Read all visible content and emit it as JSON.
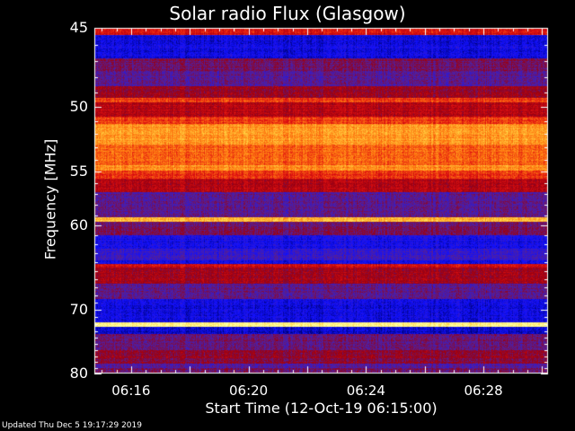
{
  "chart_data": {
    "type": "heatmap",
    "title": "Solar radio Flux (Glasgow)",
    "xlabel": "Start Time (12-Oct-19 06:15:00)",
    "ylabel": "Frequency [MHz]",
    "ylim": [
      45,
      80
    ],
    "y_ticks": [
      "45",
      "50",
      "55",
      "60",
      "70",
      "80"
    ],
    "x_ticks": [
      {
        "label": "06:16",
        "minutes": 16
      },
      {
        "label": "06:20",
        "minutes": 20
      },
      {
        "label": "06:24",
        "minutes": 24
      },
      {
        "label": "06:28",
        "minutes": 28
      }
    ],
    "x_range_minutes": [
      14.75,
      30.2
    ],
    "colormap": [
      "#000070",
      "#1010ff",
      "#5020a0",
      "#9a0010",
      "#e01010",
      "#ff7a10",
      "#ffd040",
      "#ffffa0"
    ],
    "bands": [
      {
        "mhz": [
          45.0,
          45.4
        ],
        "intensity": 0.55
      },
      {
        "mhz": [
          45.4,
          46.8
        ],
        "intensity": 0.12
      },
      {
        "mhz": [
          46.8,
          47.6
        ],
        "intensity": 0.35
      },
      {
        "mhz": [
          47.6,
          48.6
        ],
        "intensity": 0.3
      },
      {
        "mhz": [
          48.6,
          49.4
        ],
        "intensity": 0.42
      },
      {
        "mhz": [
          49.4,
          49.7
        ],
        "intensity": 0.62
      },
      {
        "mhz": [
          49.7,
          50.7
        ],
        "intensity": 0.48
      },
      {
        "mhz": [
          50.7,
          51.2
        ],
        "intensity": 0.62
      },
      {
        "mhz": [
          51.2,
          52.8
        ],
        "intensity": 0.76
      },
      {
        "mhz": [
          52.8,
          54.5
        ],
        "intensity": 0.68
      },
      {
        "mhz": [
          54.5,
          54.9
        ],
        "intensity": 0.75
      },
      {
        "mhz": [
          54.9,
          55.6
        ],
        "intensity": 0.62
      },
      {
        "mhz": [
          55.6,
          56.8
        ],
        "intensity": 0.48
      },
      {
        "mhz": [
          56.8,
          59.2
        ],
        "intensity": 0.3
      },
      {
        "mhz": [
          59.2,
          59.6
        ],
        "intensity": 0.82
      },
      {
        "mhz": [
          59.6,
          61.0
        ],
        "intensity": 0.34
      },
      {
        "mhz": [
          61.0,
          62.5
        ],
        "intensity": 0.14
      },
      {
        "mhz": [
          62.5,
          63.8
        ],
        "intensity": 0.22
      },
      {
        "mhz": [
          63.8,
          64.2
        ],
        "intensity": 0.12
      },
      {
        "mhz": [
          64.2,
          64.6
        ],
        "intensity": 0.55
      },
      {
        "mhz": [
          64.6,
          66.5
        ],
        "intensity": 0.44
      },
      {
        "mhz": [
          66.5,
          68.5
        ],
        "intensity": 0.3
      },
      {
        "mhz": [
          68.5,
          71.8
        ],
        "intensity": 0.12
      },
      {
        "mhz": [
          71.8,
          72.4
        ],
        "intensity": 0.95
      },
      {
        "mhz": [
          72.4,
          73.5
        ],
        "intensity": 0.08
      },
      {
        "mhz": [
          73.5,
          76.0
        ],
        "intensity": 0.33
      },
      {
        "mhz": [
          76.0,
          78.2
        ],
        "intensity": 0.4
      },
      {
        "mhz": [
          78.2,
          79.1
        ],
        "intensity": 0.28
      },
      {
        "mhz": [
          79.1,
          80.0
        ],
        "intensity": 0.35
      }
    ],
    "grid": false,
    "legend": "none"
  },
  "footer": {
    "updated": "Updated Thu Dec  5 19:17:29 2019"
  }
}
